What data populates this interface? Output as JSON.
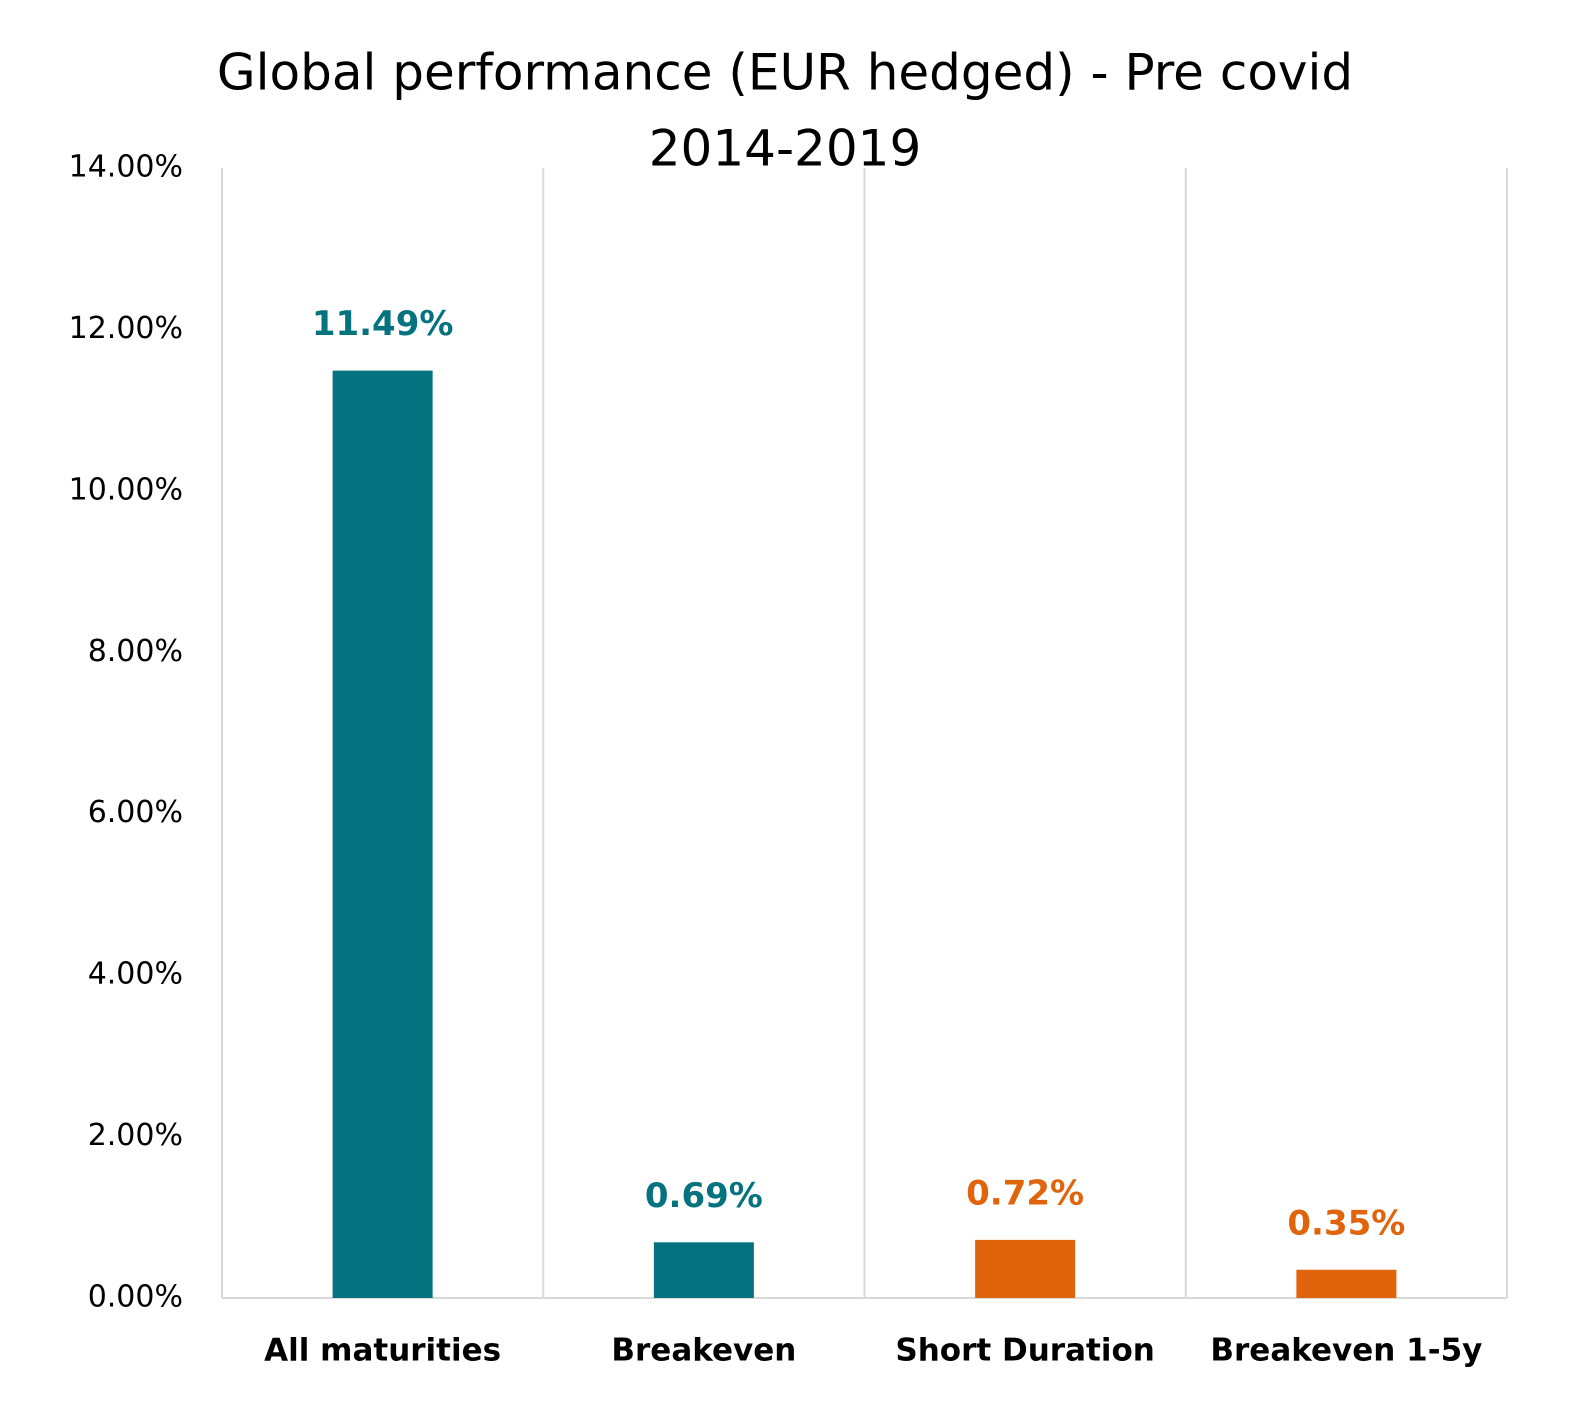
{
  "chart_data": {
    "type": "bar",
    "title": [
      "Global performance (EUR hedged) - Pre covid",
      "2014-2019"
    ],
    "categories": [
      "All maturities",
      "Breakeven",
      "Short Duration",
      "Breakeven 1-5y"
    ],
    "values": [
      11.49,
      0.69,
      0.72,
      0.35
    ],
    "value_labels": [
      "11.49%",
      "0.69%",
      "0.72%",
      "0.35%"
    ],
    "colors": [
      "#04737f",
      "#04737f",
      "#e0640c",
      "#e0640c"
    ],
    "ylim": [
      0,
      14
    ],
    "yticks": [
      {
        "value": 0,
        "label": "0.00%"
      },
      {
        "value": 2,
        "label": "2.00%"
      },
      {
        "value": 4,
        "label": "4.00%"
      },
      {
        "value": 6,
        "label": "6.00%"
      },
      {
        "value": 8,
        "label": "8.00%"
      },
      {
        "value": 10,
        "label": "10.00%"
      },
      {
        "value": 12,
        "label": "12.00%"
      },
      {
        "value": 14,
        "label": "14.00%"
      }
    ],
    "grid": false
  }
}
